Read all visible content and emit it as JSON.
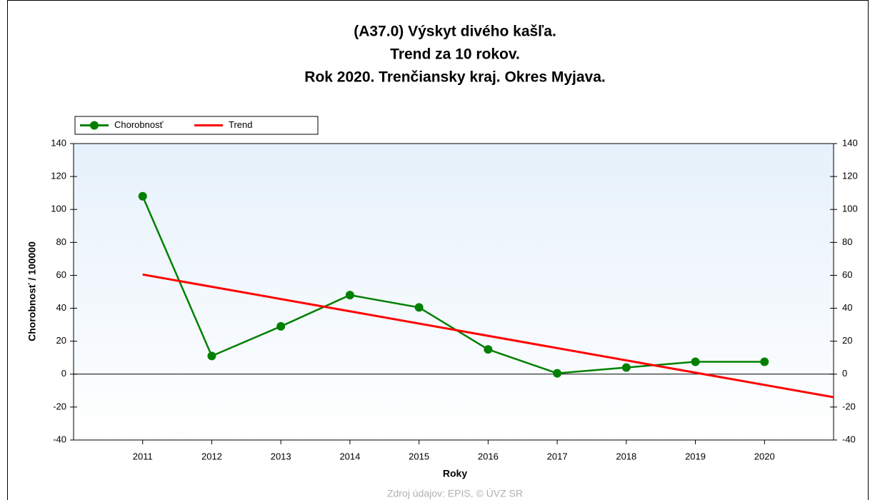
{
  "chart_data": {
    "type": "line",
    "title": [
      "(A37.0) Výskyt divého kašľa.",
      "Trend za 10 rokov.",
      "Rok 2020. Trenčiansky kraj. Okres Myjava."
    ],
    "x_label": "Roky",
    "y_label": "Chorobnosť / 100000",
    "source": "Zdroj údajov: EPIS, © ÚVZ SR",
    "x": [
      2011,
      2012,
      2013,
      2014,
      2015,
      2016,
      2017,
      2018,
      2019,
      2020
    ],
    "xlim": [
      2010,
      2021
    ],
    "xticks": [
      2011,
      2012,
      2013,
      2014,
      2015,
      2016,
      2017,
      2018,
      2019,
      2020
    ],
    "ylim": [
      -40,
      140
    ],
    "yticks": [
      -40,
      -20,
      0,
      20,
      40,
      60,
      80,
      100,
      120,
      140
    ],
    "series": [
      {
        "name": "Chorobnosť",
        "color": "#008000",
        "values": [
          108,
          11,
          29,
          48,
          40.5,
          15,
          0.5,
          4,
          7.5,
          7.5
        ]
      },
      {
        "name": "Trend",
        "color": "#ff0000",
        "x": [
          2011,
          2021
        ],
        "values": [
          60.5,
          -14
        ]
      }
    ],
    "legend": "top-left"
  }
}
